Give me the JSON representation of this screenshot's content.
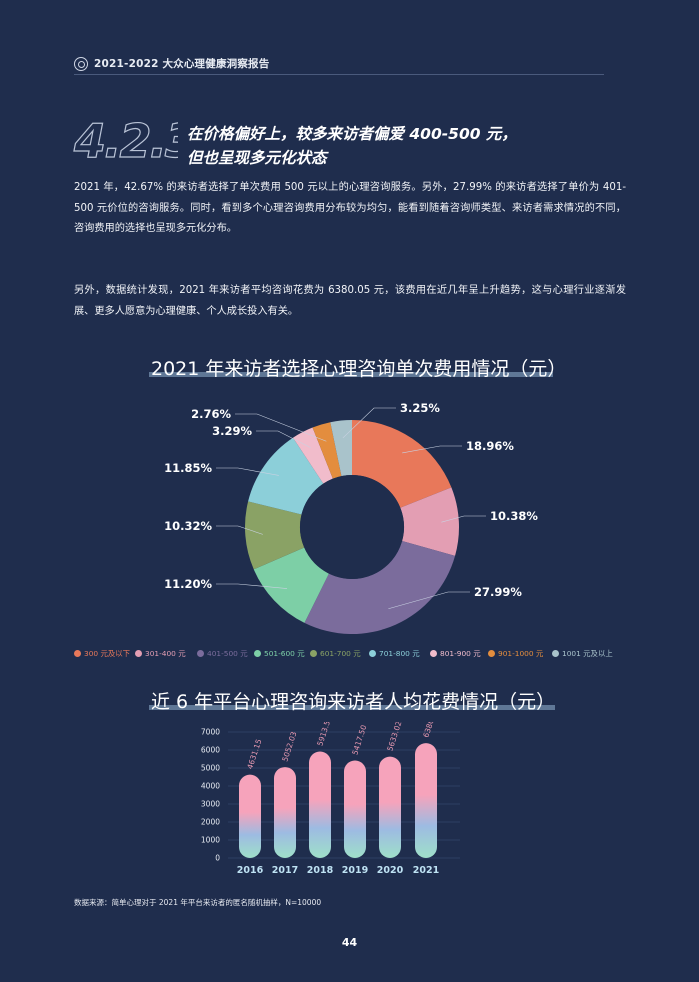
{
  "header": {
    "title": "2021-2022 大众心理健康洞察报告"
  },
  "section": {
    "number": "4.2.3",
    "title_line1": "在价格偏好上，较多来访者偏爱 400-500 元，",
    "title_line2": "但也呈现多元化状态"
  },
  "paragraphs": {
    "p1": "2021 年，42.67% 的来访者选择了单次费用 500 元以上的心理咨询服务。另外，27.99% 的来访者选择了单价为 401-500 元价位的咨询服务。同时，看到多个心理咨询费用分布较为均匀，能看到随着咨询师类型、来访者需求情况的不同，咨询费用的选择也呈现多元化分布。",
    "p2": "另外，数据统计发现，2021 年来访者平均咨询花费为 6380.05 元，该费用在近几年呈上升趋势，这与心理行业逐渐发展、更多人愿意为心理健康、个人成长投入有关。"
  },
  "source": "数据来源：简单心理对于 2021 年平台来访者的匿名随机抽样，N=10000",
  "page_number": "44",
  "chart_data": [
    {
      "type": "pie",
      "title": "2021 年来访者选择心理咨询单次费用情况（元）",
      "donut": true,
      "legend_position": "bottom",
      "categories": [
        "300 元及以下",
        "301-400 元",
        "401-500 元",
        "501-600 元",
        "601-700 元",
        "701-800 元",
        "801-900 元",
        "901-1000 元",
        "1001 元及以上"
      ],
      "values": [
        18.96,
        10.38,
        27.99,
        11.2,
        10.32,
        11.85,
        3.29,
        2.76,
        3.25
      ],
      "labels": [
        "18.96%",
        "10.38%",
        "27.99%",
        "11.20%",
        "10.32%",
        "11.85%",
        "3.29%",
        "2.76%",
        "3.25%"
      ],
      "colors": [
        "#e8785a",
        "#e39eb3",
        "#7b6c9c",
        "#7dcfa6",
        "#8aa265",
        "#8ccfd9",
        "#f1bccb",
        "#e38d3e",
        "#a9c3cb"
      ]
    },
    {
      "type": "bar",
      "title": "近 6 年平台心理咨询来访者人均花费情况（元）",
      "categories": [
        "2016",
        "2017",
        "2018",
        "2019",
        "2020",
        "2021"
      ],
      "values": [
        4631.15,
        5052.03,
        5913.56,
        5417.5,
        5633.02,
        6380.05
      ],
      "value_labels": [
        "4631.15",
        "5052.03",
        "5913.56",
        "5417.50",
        "5633.02",
        "6380.05"
      ],
      "ylim": [
        0,
        7000
      ],
      "yticks": [
        "0",
        "1000",
        "2000",
        "3000",
        "4000",
        "5000",
        "6000",
        "7000"
      ],
      "grid": true,
      "colors": {
        "top": "#f6a3bb",
        "mid": "#9dbbe2",
        "bottom": "#9fe0c9"
      }
    }
  ]
}
